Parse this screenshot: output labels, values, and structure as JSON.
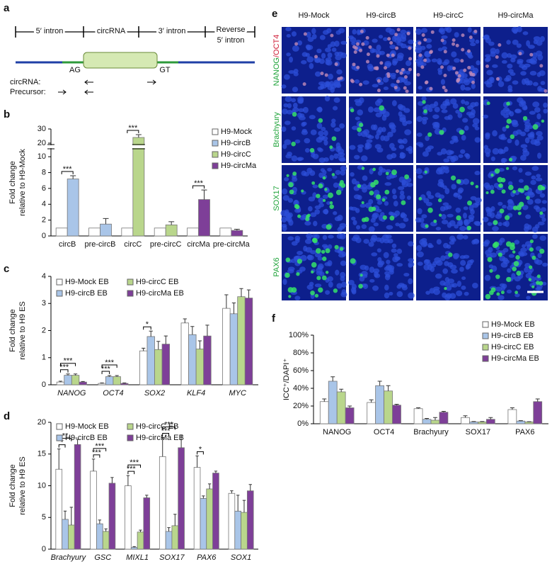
{
  "diagram_a": {
    "label": "a",
    "segments": [
      "5′ intron",
      "circRNA",
      "3′ intron"
    ],
    "reverse": [
      "Reverse",
      "5′ intron"
    ],
    "splice_sites": [
      "AG",
      "GT"
    ],
    "primers": [
      "circRNA:",
      "Precursor:"
    ]
  },
  "panel_e": {
    "label": "e",
    "columns": [
      "H9-Mock",
      "H9-circB",
      "H9-circC",
      "H9-circMa"
    ],
    "rows": [
      [
        "NANOG",
        "/OCT4"
      ],
      [
        "Brachyury"
      ],
      [
        "SOX17"
      ],
      [
        "PAX6"
      ]
    ]
  },
  "chart_data": [
    {
      "panel": "b",
      "type": "bar",
      "ylabel": [
        "Fold change",
        "relative to H9-Mock"
      ],
      "categories": [
        "circB",
        "pre-circB",
        "circC",
        "pre-circC",
        "circMa",
        "pre-circMa"
      ],
      "series": [
        {
          "name": "H9-Mock",
          "color": "#ffffff",
          "values": [
            1,
            1,
            1,
            1,
            1,
            1
          ],
          "errors": [
            null,
            null,
            null,
            null,
            null,
            null
          ]
        },
        {
          "name": "H9-circB",
          "color": "#a9c5e8",
          "values": [
            7.2,
            1.5,
            null,
            null,
            null,
            null
          ],
          "errors": [
            0.4,
            0.7,
            null,
            null,
            null,
            null
          ]
        },
        {
          "name": "H9-circC",
          "color": "#b9d68c",
          "values": [
            null,
            null,
            24,
            1.4,
            null,
            null
          ],
          "errors": [
            null,
            null,
            2,
            0.4,
            null,
            null
          ]
        },
        {
          "name": "H9-circMa",
          "color": "#7e3f98",
          "values": [
            null,
            null,
            null,
            null,
            4.6,
            0.7
          ],
          "errors": [
            null,
            null,
            null,
            null,
            1.2,
            0.15
          ]
        }
      ],
      "ylim": [
        0,
        30
      ],
      "axis_break": [
        11,
        19
      ],
      "yticks": [
        0,
        2,
        4,
        6,
        8,
        10,
        20,
        30
      ],
      "legend": "upper right",
      "annotations": [
        {
          "text": "***",
          "category": "circB",
          "series": "H9-circB"
        },
        {
          "text": "***",
          "category": "circC",
          "series": "H9-circC"
        },
        {
          "text": "***",
          "category": "circMa",
          "series": "H9-circMa"
        }
      ]
    },
    {
      "panel": "c",
      "type": "bar",
      "ylabel": [
        "Fold change",
        "relative to H9 ES"
      ],
      "categories": [
        "NANOG",
        "OCT4",
        "SOX2",
        "KLF4",
        "MYC"
      ],
      "category_style": "italic",
      "series": [
        {
          "name": "H9-Mock EB",
          "color": "#ffffff",
          "values": [
            0.1,
            0.05,
            1.25,
            2.28,
            2.82
          ],
          "errors": [
            0.03,
            0.02,
            0.1,
            0.15,
            0.5
          ]
        },
        {
          "name": "H9-circB EB",
          "color": "#a9c5e8",
          "values": [
            0.35,
            0.3,
            1.78,
            1.85,
            2.62
          ],
          "errors": [
            0.05,
            0.04,
            0.2,
            0.3,
            0.4
          ]
        },
        {
          "name": "H9-circC EB",
          "color": "#b9d68c",
          "values": [
            0.35,
            0.3,
            1.3,
            1.32,
            3.25
          ],
          "errors": [
            0.05,
            0.04,
            0.3,
            0.3,
            0.3
          ]
        },
        {
          "name": "H9-circMa EB",
          "color": "#7e3f98",
          "values": [
            0.1,
            0.05,
            1.5,
            1.8,
            3.2
          ],
          "errors": [
            0.02,
            0.02,
            0.3,
            0.4,
            0.3
          ]
        }
      ],
      "ylim": [
        0,
        4
      ],
      "yticks": [
        0,
        1,
        2,
        3,
        4
      ],
      "legend": "upper left",
      "legend_columns": 2,
      "annotations": [
        {
          "text": "***",
          "category": "NANOG",
          "series": "H9-circB EB"
        },
        {
          "text": "***",
          "category": "NANOG",
          "series": "H9-circC EB"
        },
        {
          "text": "***",
          "category": "OCT4",
          "series": "H9-circB EB"
        },
        {
          "text": "***",
          "category": "OCT4",
          "series": "H9-circC EB"
        },
        {
          "text": "*",
          "category": "SOX2",
          "series": "H9-circB EB"
        }
      ]
    },
    {
      "panel": "d",
      "type": "bar",
      "ylabel": [
        "Fold change",
        "relative to H9 ES"
      ],
      "categories": [
        "Brachyury",
        "GSC",
        "MIXL1",
        "SOX17",
        "PAX6",
        "SOX1"
      ],
      "category_style": "italic",
      "series": [
        {
          "name": "H9-Mock EB",
          "color": "#ffffff",
          "values": [
            12.6,
            12.3,
            10.0,
            14.6,
            12.9,
            8.8
          ],
          "errors": [
            3.2,
            1.9,
            1.6,
            3,
            1.8,
            0.4
          ]
        },
        {
          "name": "H9-circB EB",
          "color": "#a9c5e8",
          "values": [
            4.7,
            4.0,
            0.3,
            2.8,
            8.0,
            6.0
          ],
          "errors": [
            1.3,
            0.6,
            0.1,
            0.6,
            0.4,
            2.5
          ]
        },
        {
          "name": "H9-circC EB",
          "color": "#b9d68c",
          "values": [
            3.8,
            2.8,
            2.7,
            3.7,
            9.5,
            5.8
          ],
          "errors": [
            2.8,
            0.4,
            0.3,
            1.8,
            0.8,
            1.9
          ]
        },
        {
          "name": "H9-circMa EB",
          "color": "#7e3f98",
          "values": [
            16.5,
            10.4,
            8.1,
            16.0,
            12.0,
            9.2
          ],
          "errors": [
            0.8,
            0.9,
            0.4,
            2,
            0.3,
            1.0
          ]
        }
      ],
      "ylim": [
        0,
        20
      ],
      "yticks": [
        0,
        5,
        10,
        15,
        20
      ],
      "legend": "upper left",
      "legend_columns": 2,
      "annotations": [
        {
          "text": "*",
          "category": "Brachyury",
          "series": "H9-circB EB"
        },
        {
          "text": "**",
          "category": "Brachyury",
          "series": "H9-circC EB"
        },
        {
          "text": "***",
          "category": "GSC",
          "series": "H9-circB EB"
        },
        {
          "text": "***",
          "category": "GSC",
          "series": "H9-circC EB"
        },
        {
          "text": "***",
          "category": "MIXL1",
          "series": "H9-circB EB"
        },
        {
          "text": "***",
          "category": "MIXL1",
          "series": "H9-circC EB"
        },
        {
          "text": "***",
          "category": "SOX17",
          "series": "H9-circB EB"
        },
        {
          "text": "***",
          "category": "SOX17",
          "series": "H9-circC EB"
        },
        {
          "text": "*",
          "category": "PAX6",
          "series": "H9-circB EB"
        }
      ]
    },
    {
      "panel": "f",
      "type": "bar",
      "ylabel": [
        "ICC⁺/DAPI⁺"
      ],
      "categories": [
        "NANOG",
        "OCT4",
        "Brachyury",
        "SOX17",
        "PAX6"
      ],
      "series": [
        {
          "name": "H9-Mock EB",
          "color": "#ffffff",
          "values": [
            25,
            24,
            17,
            7,
            16
          ],
          "errors": [
            3,
            3,
            1,
            2,
            2
          ]
        },
        {
          "name": "H9-circB EB",
          "color": "#a9c5e8",
          "values": [
            48,
            43,
            5,
            2,
            3
          ],
          "errors": [
            5,
            5,
            1,
            0.5,
            0.5
          ]
        },
        {
          "name": "H9-circC EB",
          "color": "#b9d68c",
          "values": [
            36,
            37,
            4,
            2,
            2
          ],
          "errors": [
            3,
            6,
            3,
            0.5,
            0.3
          ]
        },
        {
          "name": "H9-circMa EB",
          "color": "#7e3f98",
          "values": [
            18,
            21,
            13,
            5,
            25
          ],
          "errors": [
            2,
            1,
            1,
            2,
            3
          ]
        }
      ],
      "ylim": [
        0,
        100
      ],
      "yticks": [
        {
          "value": 0,
          "label": "0%"
        },
        {
          "value": 20,
          "label": "20%"
        },
        {
          "value": 40,
          "label": "40%"
        },
        {
          "value": 60,
          "label": "60%"
        },
        {
          "value": 80,
          "label": "80%"
        },
        {
          "value": 100,
          "label": "100%"
        }
      ],
      "legend": "upper right"
    }
  ]
}
